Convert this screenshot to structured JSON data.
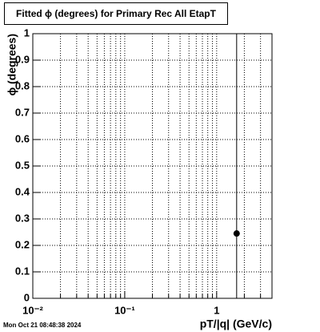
{
  "chart_data": {
    "type": "scatter",
    "title": "Fitted ϕ (degrees) for Primary Rec All EtapT",
    "x_label": "pT/|q| (GeV/c)",
    "y_label": "ϕ (degrees)",
    "timestamp": "Mon Oct 21 08:48:38 2024",
    "x": [
      1.65
    ],
    "values": [
      0.245
    ],
    "errors": [
      1
    ],
    "color": "#000000",
    "log_x": true,
    "grid": true,
    "xlim": [
      0.01,
      4
    ],
    "xticks": [
      {
        "value": 0.01,
        "label": "10⁻²"
      },
      {
        "value": 0.1,
        "label": "10⁻¹"
      },
      1
    ],
    "xminorticks": [
      0.02,
      0.03,
      0.04,
      0.05,
      0.06,
      0.07,
      0.08,
      0.09,
      0.2,
      0.3,
      0.4,
      0.5,
      0.6,
      0.7,
      0.8,
      0.9,
      2,
      3
    ],
    "ylim": [
      0,
      1
    ],
    "yticks": [
      0,
      0.1,
      0.2,
      0.3,
      0.4,
      0.5,
      0.6,
      0.7,
      0.8,
      0.9,
      1
    ]
  }
}
